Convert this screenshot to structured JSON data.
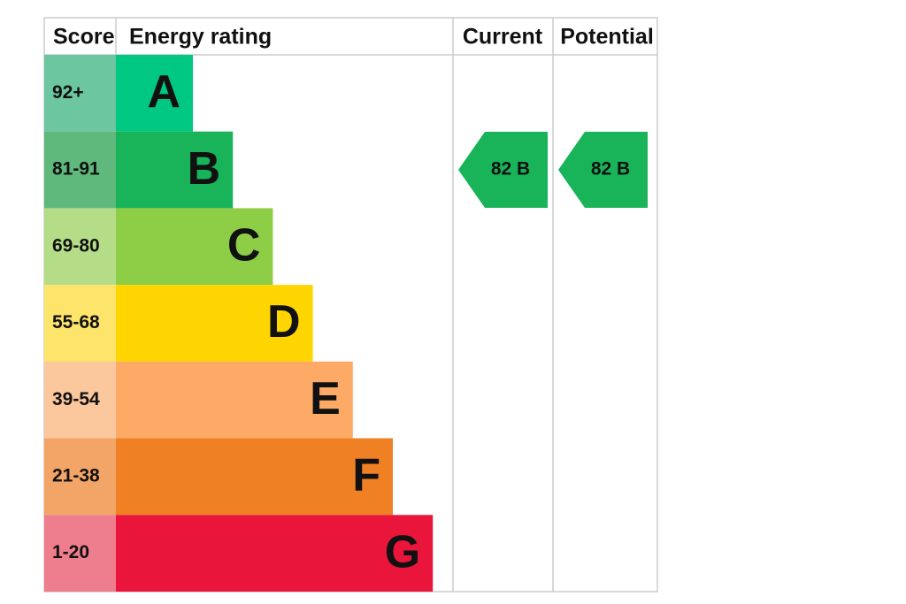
{
  "header": {
    "score": "Score",
    "rating": "Energy rating",
    "current": "Current",
    "potential": "Potential"
  },
  "bands": [
    {
      "score": "92+",
      "letter": "A",
      "color": "#00c781",
      "score_color": "#6cc6a0"
    },
    {
      "score": "81-91",
      "letter": "B",
      "color": "#19b459",
      "score_color": "#5fb87c"
    },
    {
      "score": "69-80",
      "letter": "C",
      "color": "#8dce46",
      "score_color": "#b5dd87"
    },
    {
      "score": "55-68",
      "letter": "D",
      "color": "#ffd500",
      "score_color": "#fde46a"
    },
    {
      "score": "39-54",
      "letter": "E",
      "color": "#fcaa65",
      "score_color": "#fbc79c"
    },
    {
      "score": "21-38",
      "letter": "F",
      "color": "#ef8023",
      "score_color": "#f2a566"
    },
    {
      "score": "1-20",
      "letter": "G",
      "color": "#e9153b",
      "score_color": "#ee7d8d"
    }
  ],
  "current": {
    "label": "82 B",
    "color": "#19b459"
  },
  "potential": {
    "label": "82 B",
    "color": "#19b459"
  }
}
